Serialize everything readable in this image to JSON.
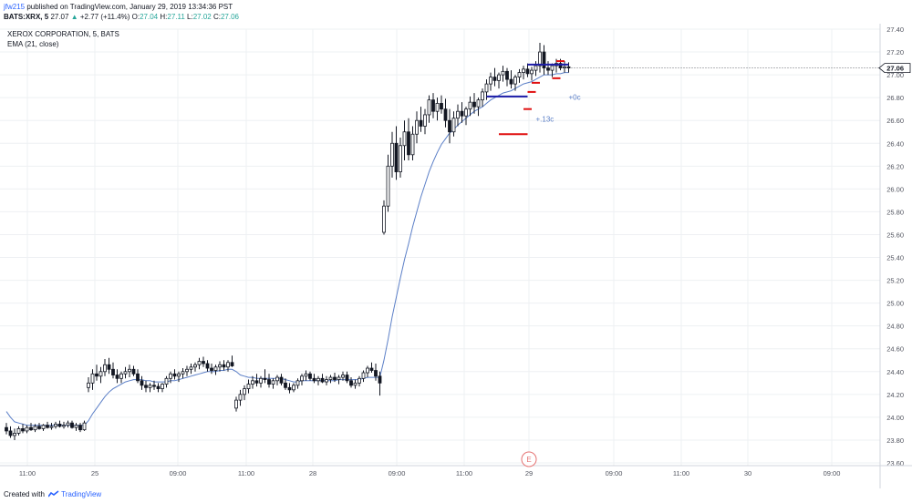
{
  "header": {
    "user": "jfw215",
    "published_text": "published on TradingView.com, January 29, 2019 13:34:36 PST",
    "symbol": "BATS:XRX, 5",
    "last": "27.07",
    "change": "+2.77 (+11.4%)",
    "o_label": "O:",
    "o_value": "27.04",
    "h_label": "H:",
    "h_value": "27.11",
    "l_label": "L:",
    "l_value": "27.02",
    "c_label": "C:",
    "c_value": "27.06"
  },
  "legend": {
    "title": "XEROX CORPORATION, 5, BATS",
    "indicator": "EMA (21, close)"
  },
  "footer": {
    "created_with": "Created with",
    "brand": "TradingView"
  },
  "colors": {
    "up": "#26a69a",
    "bar": "#131722",
    "ema": "#5b7fc7",
    "support": "#e01010",
    "resistance": "#1c1ca8",
    "annotation": "#5b7fc7",
    "price_tag": "#131722",
    "earnings": "#e57373",
    "grid": "#eef0f3"
  },
  "chart_data": {
    "type": "candlestick",
    "title": "XEROX CORPORATION, 5, BATS",
    "x_ticks": [
      "11:00",
      "25",
      "09:00",
      "11:00",
      "28",
      "09:00",
      "11:00",
      "29",
      "09:00",
      "11:00",
      "30",
      "09:00"
    ],
    "y_ticks": [
      "27.40",
      "27.20",
      "27.00",
      "26.80",
      "26.60",
      "26.40",
      "26.20",
      "26.00",
      "25.80",
      "25.60",
      "25.40",
      "25.20",
      "25.00",
      "24.80",
      "24.60",
      "24.40",
      "24.20",
      "24.00",
      "23.80",
      "23.60"
    ],
    "ylim": [
      23.6,
      27.4
    ],
    "last_price_label": "27.06",
    "grid": true,
    "ohlc": [
      [
        23.91,
        23.95,
        23.85,
        23.88
      ],
      [
        23.88,
        23.92,
        23.82,
        23.84
      ],
      [
        23.84,
        23.9,
        23.8,
        23.86
      ],
      [
        23.86,
        23.92,
        23.84,
        23.9
      ],
      [
        23.9,
        23.94,
        23.86,
        23.88
      ],
      [
        23.88,
        23.93,
        23.86,
        23.91
      ],
      [
        23.91,
        23.95,
        23.88,
        23.89
      ],
      [
        23.89,
        23.94,
        23.87,
        23.92
      ],
      [
        23.92,
        23.95,
        23.89,
        23.9
      ],
      [
        23.9,
        23.94,
        23.88,
        23.93
      ],
      [
        23.93,
        23.96,
        23.9,
        23.91
      ],
      [
        23.91,
        23.95,
        23.89,
        23.92
      ],
      [
        23.92,
        23.96,
        23.9,
        23.94
      ],
      [
        23.94,
        23.97,
        23.91,
        23.92
      ],
      [
        23.92,
        23.96,
        23.9,
        23.93
      ],
      [
        23.93,
        23.97,
        23.91,
        23.95
      ],
      [
        23.95,
        23.97,
        23.9,
        23.91
      ],
      [
        23.91,
        23.95,
        23.88,
        23.93
      ],
      [
        23.93,
        23.95,
        23.87,
        23.89
      ],
      [
        23.89,
        23.97,
        23.88,
        23.95
      ],
      [
        24.26,
        24.35,
        24.22,
        24.3
      ],
      [
        24.3,
        24.42,
        24.24,
        24.38
      ],
      [
        24.38,
        24.46,
        24.32,
        24.36
      ],
      [
        24.36,
        24.44,
        24.3,
        24.4
      ],
      [
        24.4,
        24.51,
        24.36,
        24.46
      ],
      [
        24.46,
        24.52,
        24.38,
        24.42
      ],
      [
        24.42,
        24.48,
        24.34,
        24.37
      ],
      [
        24.37,
        24.42,
        24.3,
        24.34
      ],
      [
        24.34,
        24.4,
        24.3,
        24.38
      ],
      [
        24.38,
        24.44,
        24.34,
        24.4
      ],
      [
        24.4,
        24.46,
        24.35,
        24.42
      ],
      [
        24.42,
        24.45,
        24.36,
        24.38
      ],
      [
        24.38,
        24.42,
        24.3,
        24.32
      ],
      [
        24.32,
        24.36,
        24.24,
        24.28
      ],
      [
        24.28,
        24.32,
        24.22,
        24.26
      ],
      [
        24.26,
        24.3,
        24.22,
        24.28
      ],
      [
        24.28,
        24.32,
        24.24,
        24.27
      ],
      [
        24.27,
        24.3,
        24.22,
        24.25
      ],
      [
        24.25,
        24.3,
        24.22,
        24.29
      ],
      [
        24.29,
        24.36,
        24.26,
        24.34
      ],
      [
        24.34,
        24.4,
        24.3,
        24.38
      ],
      [
        24.38,
        24.42,
        24.33,
        24.36
      ],
      [
        24.36,
        24.4,
        24.31,
        24.38
      ],
      [
        24.38,
        24.43,
        24.34,
        24.4
      ],
      [
        24.4,
        24.45,
        24.36,
        24.42
      ],
      [
        24.42,
        24.47,
        24.38,
        24.44
      ],
      [
        24.44,
        24.48,
        24.4,
        24.46
      ],
      [
        24.46,
        24.52,
        24.42,
        24.49
      ],
      [
        24.49,
        24.53,
        24.44,
        24.47
      ],
      [
        24.47,
        24.5,
        24.4,
        24.43
      ],
      [
        24.43,
        24.47,
        24.38,
        24.41
      ],
      [
        24.41,
        24.46,
        24.37,
        24.44
      ],
      [
        24.44,
        24.49,
        24.4,
        24.46
      ],
      [
        24.46,
        24.5,
        24.41,
        24.44
      ],
      [
        24.44,
        24.5,
        24.4,
        24.48
      ],
      [
        24.48,
        24.54,
        24.44,
        24.45
      ],
      [
        24.08,
        24.18,
        24.05,
        24.15
      ],
      [
        24.15,
        24.24,
        24.1,
        24.2
      ],
      [
        24.2,
        24.28,
        24.15,
        24.25
      ],
      [
        24.25,
        24.33,
        24.21,
        24.29
      ],
      [
        24.29,
        24.36,
        24.25,
        24.32
      ],
      [
        24.32,
        24.38,
        24.27,
        24.3
      ],
      [
        24.3,
        24.36,
        24.26,
        24.34
      ],
      [
        24.34,
        24.42,
        24.3,
        24.33
      ],
      [
        24.33,
        24.38,
        24.26,
        24.29
      ],
      [
        24.29,
        24.34,
        24.25,
        24.32
      ],
      [
        24.32,
        24.37,
        24.28,
        24.35
      ],
      [
        24.35,
        24.38,
        24.28,
        24.3
      ],
      [
        24.3,
        24.34,
        24.24,
        24.26
      ],
      [
        24.26,
        24.3,
        24.21,
        24.24
      ],
      [
        24.24,
        24.3,
        24.22,
        24.28
      ],
      [
        24.28,
        24.34,
        24.25,
        24.32
      ],
      [
        24.32,
        24.38,
        24.28,
        24.36
      ],
      [
        24.36,
        24.41,
        24.32,
        24.38
      ],
      [
        24.38,
        24.4,
        24.32,
        24.34
      ],
      [
        24.34,
        24.38,
        24.3,
        24.32
      ],
      [
        24.32,
        24.36,
        24.28,
        24.34
      ],
      [
        24.34,
        24.38,
        24.3,
        24.31
      ],
      [
        24.31,
        24.36,
        24.28,
        24.33
      ],
      [
        24.33,
        24.37,
        24.3,
        24.35
      ],
      [
        24.35,
        24.39,
        24.31,
        24.33
      ],
      [
        24.33,
        24.37,
        24.29,
        24.35
      ],
      [
        24.35,
        24.4,
        24.32,
        24.37
      ],
      [
        24.37,
        24.4,
        24.3,
        24.32
      ],
      [
        24.32,
        24.35,
        24.26,
        24.28
      ],
      [
        24.28,
        24.33,
        24.25,
        24.3
      ],
      [
        24.3,
        24.36,
        24.27,
        24.34
      ],
      [
        24.34,
        24.41,
        24.31,
        24.39
      ],
      [
        24.39,
        24.45,
        24.35,
        24.43
      ],
      [
        24.43,
        24.48,
        24.39,
        24.41
      ],
      [
        24.41,
        24.47,
        24.32,
        24.36
      ],
      [
        24.36,
        24.4,
        24.19,
        24.3
      ],
      [
        25.62,
        25.9,
        25.6,
        25.85
      ],
      [
        25.85,
        26.3,
        25.8,
        26.2
      ],
      [
        26.2,
        26.5,
        26.1,
        26.4
      ],
      [
        26.4,
        26.55,
        26.08,
        26.15
      ],
      [
        26.15,
        26.45,
        26.1,
        26.38
      ],
      [
        26.38,
        26.6,
        26.25,
        26.5
      ],
      [
        26.5,
        26.62,
        26.25,
        26.3
      ],
      [
        26.3,
        26.55,
        26.25,
        26.48
      ],
      [
        26.48,
        26.68,
        26.4,
        26.6
      ],
      [
        26.6,
        26.72,
        26.5,
        26.55
      ],
      [
        26.55,
        26.7,
        26.48,
        26.65
      ],
      [
        26.65,
        26.82,
        26.58,
        26.78
      ],
      [
        26.78,
        26.84,
        26.62,
        26.68
      ],
      [
        26.68,
        26.8,
        26.6,
        26.75
      ],
      [
        26.75,
        26.82,
        26.66,
        26.7
      ],
      [
        26.7,
        26.79,
        26.54,
        26.6
      ],
      [
        26.6,
        26.7,
        26.4,
        26.5
      ],
      [
        26.5,
        26.68,
        26.46,
        26.62
      ],
      [
        26.62,
        26.74,
        26.55,
        26.68
      ],
      [
        26.68,
        26.76,
        26.58,
        26.64
      ],
      [
        26.64,
        26.72,
        26.56,
        26.7
      ],
      [
        26.7,
        26.81,
        26.64,
        26.76
      ],
      [
        26.76,
        26.84,
        26.66,
        26.72
      ],
      [
        26.72,
        26.8,
        26.64,
        26.78
      ],
      [
        26.78,
        26.88,
        26.72,
        26.85
      ],
      [
        26.85,
        26.96,
        26.78,
        26.92
      ],
      [
        26.92,
        27.02,
        26.86,
        26.98
      ],
      [
        26.98,
        27.06,
        26.9,
        26.95
      ],
      [
        26.95,
        27.02,
        26.88,
        27.0
      ],
      [
        27.0,
        27.08,
        26.94,
        27.03
      ],
      [
        27.03,
        27.06,
        26.9,
        26.96
      ],
      [
        26.96,
        27.04,
        26.88,
        26.92
      ],
      [
        26.92,
        27.0,
        26.86,
        26.98
      ],
      [
        26.98,
        27.05,
        26.93,
        27.02
      ],
      [
        27.02,
        27.08,
        26.96,
        27.05
      ],
      [
        27.05,
        27.1,
        26.98,
        27.01
      ],
      [
        27.01,
        27.07,
        26.95,
        27.04
      ],
      [
        27.04,
        27.12,
        26.99,
        27.08
      ],
      [
        27.08,
        27.28,
        27.02,
        27.2
      ],
      [
        27.2,
        27.26,
        27.0,
        27.06
      ],
      [
        27.06,
        27.12,
        27.0,
        27.04
      ],
      [
        27.04,
        27.1,
        26.98,
        27.08
      ],
      [
        27.08,
        27.14,
        27.02,
        27.1
      ],
      [
        27.1,
        27.14,
        27.04,
        27.06
      ],
      [
        27.06,
        27.12,
        27.02,
        27.07
      ],
      [
        27.07,
        27.11,
        27.02,
        27.06
      ]
    ],
    "ema": [
      24.05,
      24.0,
      23.96,
      23.95,
      23.94,
      23.93,
      23.93,
      23.93,
      23.93,
      23.93,
      23.93,
      23.93,
      23.93,
      23.93,
      23.93,
      23.93,
      23.93,
      23.93,
      23.93,
      23.93,
      23.97,
      24.03,
      24.08,
      24.13,
      24.18,
      24.22,
      24.25,
      24.27,
      24.29,
      24.31,
      24.32,
      24.33,
      24.33,
      24.33,
      24.32,
      24.32,
      24.31,
      24.31,
      24.31,
      24.31,
      24.32,
      24.32,
      24.33,
      24.34,
      24.35,
      24.36,
      24.37,
      24.38,
      24.39,
      24.4,
      24.4,
      24.4,
      24.41,
      24.41,
      24.42,
      24.42,
      24.4,
      24.37,
      24.36,
      24.35,
      24.35,
      24.34,
      24.34,
      24.34,
      24.34,
      24.34,
      24.34,
      24.34,
      24.33,
      24.32,
      24.31,
      24.31,
      24.32,
      24.32,
      24.32,
      24.32,
      24.32,
      24.32,
      24.32,
      24.32,
      24.32,
      24.33,
      24.33,
      24.33,
      24.33,
      24.33,
      24.33,
      24.34,
      24.35,
      24.35,
      24.35,
      24.35,
      24.5,
      24.68,
      24.88,
      25.05,
      25.22,
      25.38,
      25.52,
      25.67,
      25.8,
      25.93,
      26.04,
      26.15,
      26.24,
      26.32,
      26.39,
      26.44,
      26.49,
      26.52,
      26.56,
      26.59,
      26.62,
      26.65,
      26.68,
      26.7,
      26.72,
      26.75,
      26.78,
      26.8,
      26.82,
      26.84,
      26.85,
      26.86,
      26.88,
      26.9,
      26.92,
      26.93,
      26.94,
      26.96,
      26.98,
      27.0,
      27.0,
      27.0,
      27.01,
      27.01,
      27.02,
      27.02
    ],
    "drawings": [
      {
        "kind": "resistance",
        "from": 117,
        "to": 127,
        "price": 26.81
      },
      {
        "kind": "resistance",
        "from": 127,
        "to": 137,
        "price": 27.09
      },
      {
        "kind": "support",
        "from": 120,
        "to": 127,
        "price": 26.48
      },
      {
        "kind": "support",
        "from": 126,
        "to": 128,
        "price": 26.7
      },
      {
        "kind": "support",
        "from": 127,
        "to": 129,
        "price": 26.85
      },
      {
        "kind": "support",
        "from": 128,
        "to": 130,
        "price": 26.93
      },
      {
        "kind": "support",
        "from": 133,
        "to": 135,
        "price": 26.97
      },
      {
        "kind": "support",
        "from": 134,
        "to": 136,
        "price": 27.12
      }
    ],
    "annotations": [
      {
        "text": "+.13c",
        "at": 129,
        "price": 26.59
      },
      {
        "text": "+0c",
        "at": 137,
        "price": 26.78
      }
    ],
    "earnings_marker": "E"
  }
}
